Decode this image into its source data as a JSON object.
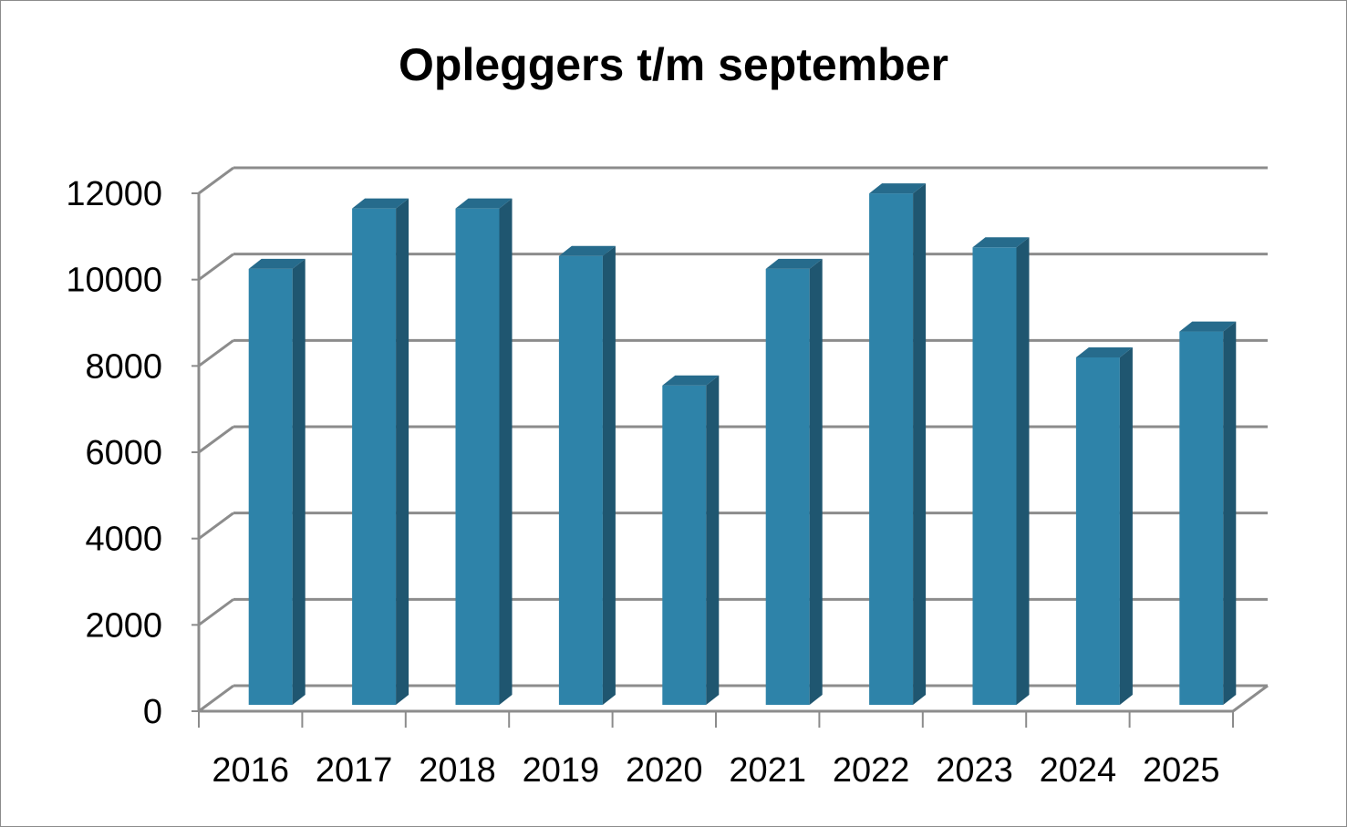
{
  "chart_data": {
    "type": "bar",
    "title": "Opleggers t/m september",
    "categories": [
      "2016",
      "2017",
      "2018",
      "2019",
      "2020",
      "2021",
      "2022",
      "2023",
      "2024",
      "2025"
    ],
    "values": [
      10100,
      11500,
      11500,
      10400,
      7400,
      10100,
      11850,
      10600,
      8050,
      8650
    ],
    "ylim": [
      0,
      12000
    ],
    "yticks": [
      0,
      2000,
      4000,
      6000,
      8000,
      10000,
      12000
    ],
    "grid": true,
    "legend": "none",
    "colors": {
      "bar_front": "#2e83a9",
      "bar_side": "#1f5670",
      "bar_top": "#266b8c",
      "grid": "#8c8c8c"
    }
  }
}
